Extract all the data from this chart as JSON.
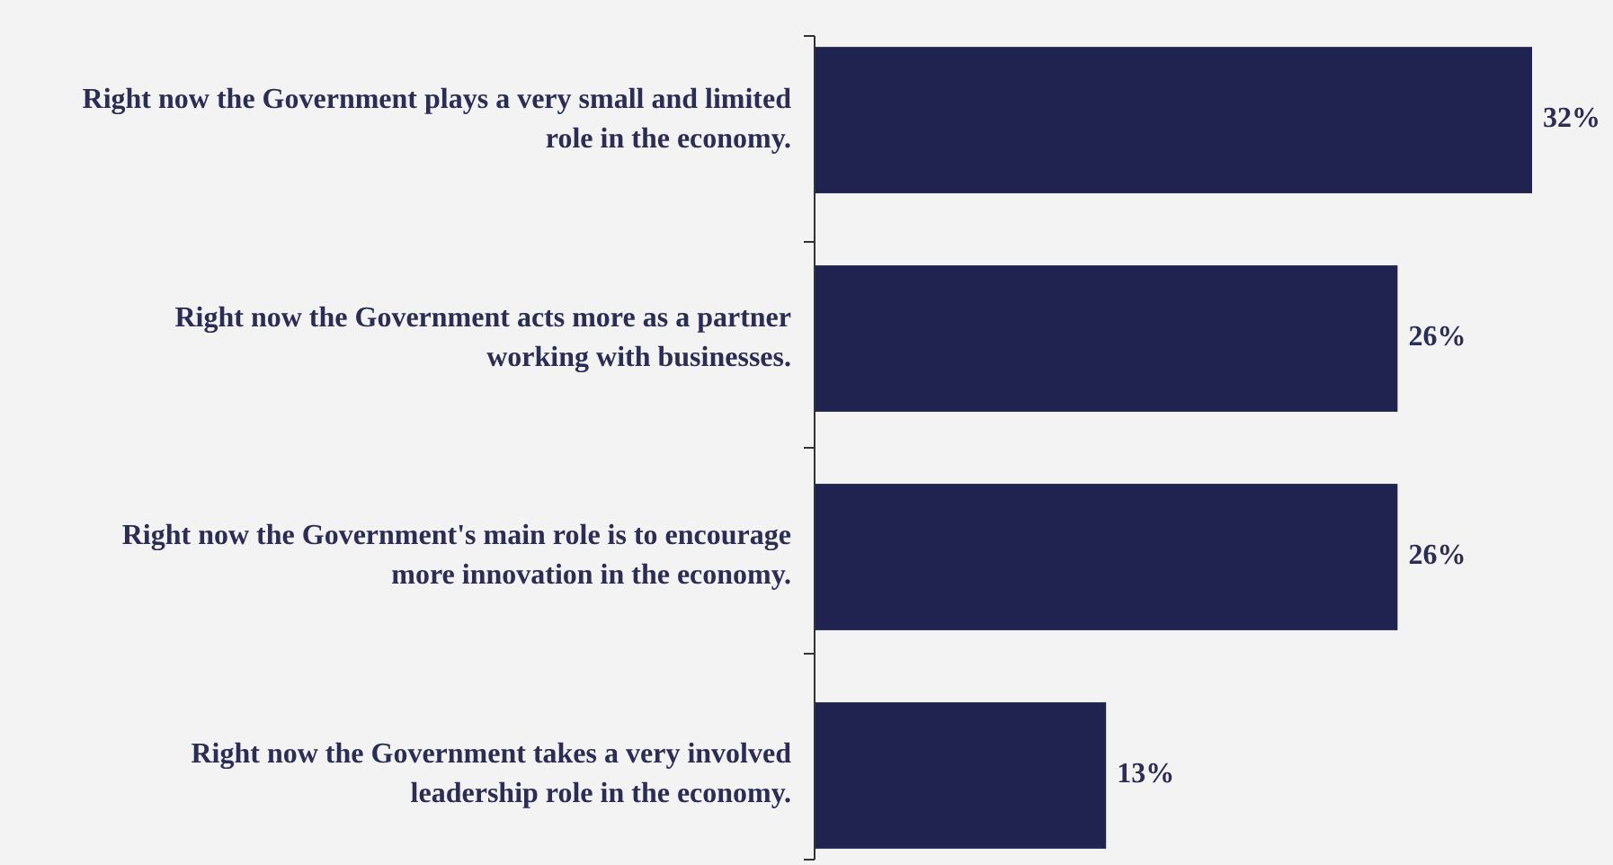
{
  "chart_data": {
    "type": "bar",
    "orientation": "horizontal",
    "categories": [
      "Right now the Government plays a very small and limited role in the economy.",
      "Right now the Government acts more as a partner working with businesses.",
      "Right now the Government's main role is to encourage more innovation in the economy.",
      "Right now the Government takes a very involved leadership role in the economy."
    ],
    "values": [
      32,
      26,
      26,
      13
    ],
    "value_labels": [
      "32%",
      "26%",
      "26%",
      "13%"
    ],
    "color": "#20224f"
  }
}
